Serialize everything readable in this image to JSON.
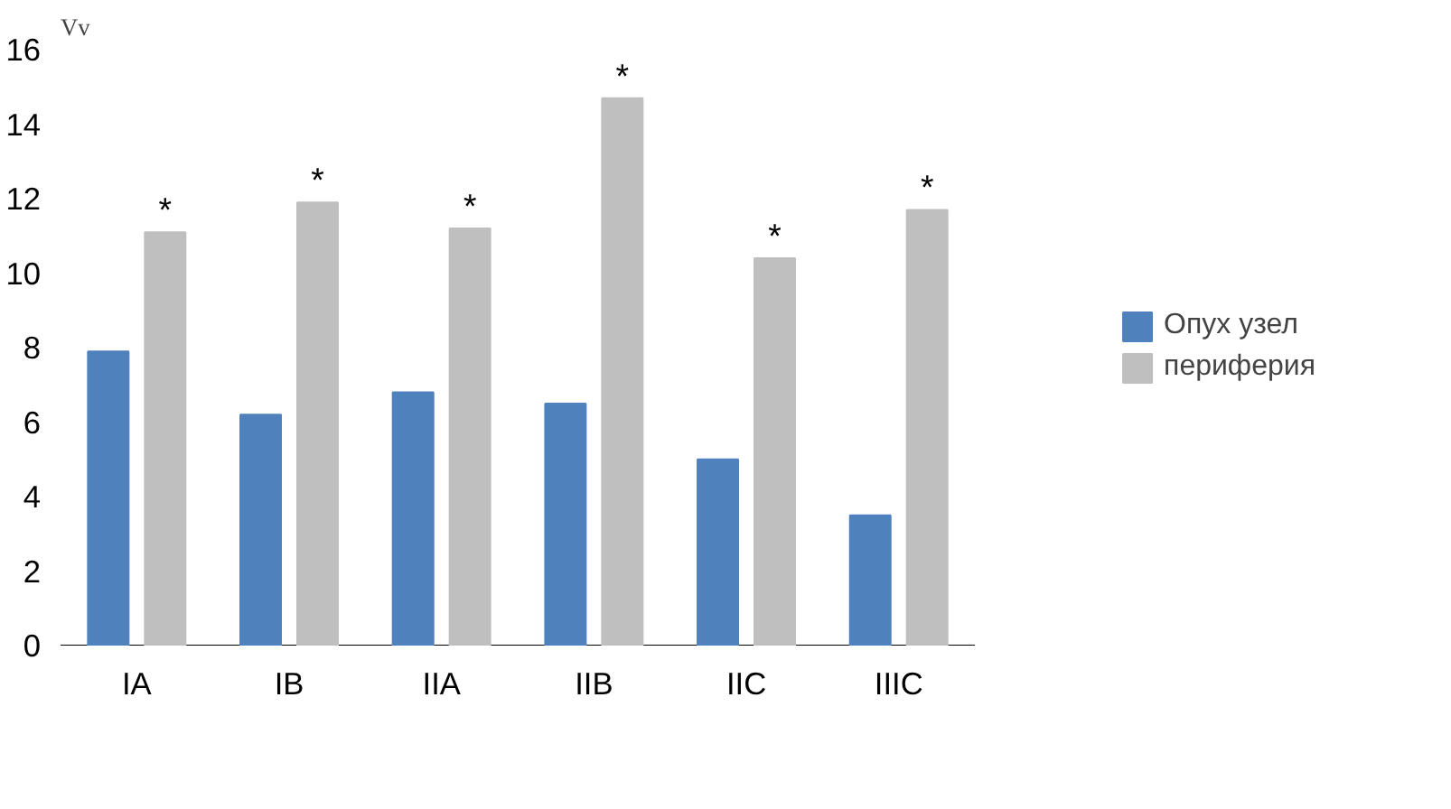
{
  "chart_data": {
    "type": "bar",
    "ylabel": "Vv",
    "categories": [
      "IA",
      "IB",
      "IIA",
      "IIB",
      "IIC",
      "IIIC"
    ],
    "series": [
      {
        "name": "Опух узел",
        "color": "#4f81bd",
        "values": [
          7.9,
          6.2,
          6.8,
          6.5,
          5.0,
          3.5
        ]
      },
      {
        "name": "периферия",
        "color": "#bfbfbf",
        "values": [
          11.1,
          11.9,
          11.2,
          14.7,
          10.4,
          11.7
        ]
      }
    ],
    "ylim": [
      0,
      16
    ],
    "yticks": [
      0,
      2,
      4,
      6,
      8,
      10,
      12,
      14,
      16
    ],
    "grid": false,
    "legend": "right",
    "annotations": [
      "*",
      "*",
      "*",
      "*",
      "*",
      "*"
    ]
  }
}
